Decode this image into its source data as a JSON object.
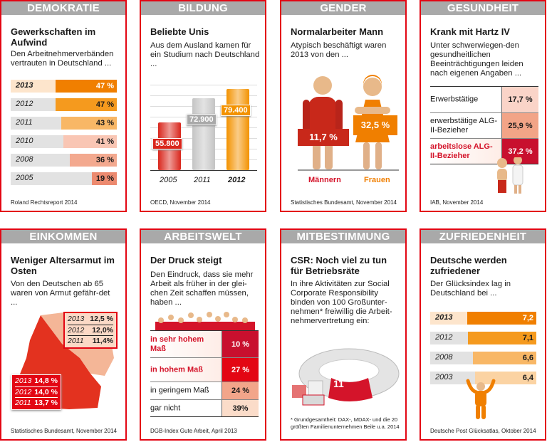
{
  "panels": {
    "demokratie": {
      "header": "DEMOKRATIE",
      "title": "Gewerkschaften im Aufwind",
      "subtitle": "Den Arbeitnehmerverbänden vertrauten in Deutschland ...",
      "source": "Roland Rechtsreport 2014"
    },
    "bildung": {
      "header": "BILDUNG",
      "title": "Beliebte Unis",
      "subtitle": "Aus dem Ausland kamen für ein Studium nach Deutschland ...",
      "source": "OECD, November 2014"
    },
    "gender": {
      "header": "GENDER",
      "title": "Normalarbeiter Mann",
      "subtitle": "Atypisch beschäftigt waren 2013 von den ...",
      "source": "Statistisches Bundesamt, November 2014"
    },
    "gesundheit": {
      "header": "GESUNDHEIT",
      "title": "Krank mit Hartz IV",
      "subtitle": "Unter schwerwiegen-den gesundheitlichen Beeinträchtigungen leiden nach eigenen Angaben ...",
      "source": "IAB, November 2014"
    },
    "einkommen": {
      "header": "EINKOMMEN",
      "title": "Weniger Altersarmut im Osten",
      "subtitle": "Von den Deutschen ab 65 waren von Armut gefähr-det ...",
      "source": "Statistisches Bundesamt, November 2014"
    },
    "arbeitswelt": {
      "header": "ARBEITSWELT",
      "title": "Der Druck steigt",
      "subtitle": "Den Eindruck, dass sie mehr Arbeit als früher in der glei-chen Zeit schaffen müssen, haben ...",
      "source": "DGB-Index Gute Arbeit, April 2013"
    },
    "mitbestimmung": {
      "header": "MITBESTIMMUNG",
      "title": "CSR: Noch viel zu tun für Betriebsräte",
      "subtitle": "In ihre Aktivitäten zur Social Corporate Responsibility binden von 100 Großunter-nehmen* freiwillig die Arbeit-nehmervertretung ein:",
      "value": "11",
      "footnote": "* Grundgesamtheit: DAX-, MDAX- und die 20 größten Familienunternehmen Beile u.a. 2014"
    },
    "zufriedenheit": {
      "header": "ZUFRIEDENHEIT",
      "title": "Deutsche werden zufriedener",
      "subtitle": "Der Glücksindex lag in Deutschland bei ...",
      "source": "Deutsche Post Glücksatlas, Oktober 2014"
    }
  },
  "chart_data": [
    {
      "id": "demokratie",
      "type": "bar",
      "orientation": "horizontal",
      "categories": [
        "2013",
        "2012",
        "2011",
        "2010",
        "2008",
        "2005"
      ],
      "values": [
        47,
        47,
        43,
        41,
        36,
        19
      ],
      "labels": [
        "47 %",
        "47 %",
        "43 %",
        "41 %",
        "36 %",
        "19 %"
      ],
      "colors": [
        "#f07f00",
        "#f59a1e",
        "#f8b766",
        "#f9c6b4",
        "#f3a98f",
        "#ec8a6f"
      ],
      "ylim": [
        0,
        82
      ]
    },
    {
      "id": "bildung",
      "type": "bar",
      "categories": [
        "2005",
        "2011",
        "2012"
      ],
      "values": [
        55800,
        72900,
        79400
      ],
      "labels": [
        "55.800",
        "72.900",
        "79.400"
      ],
      "colors": [
        "#d9261c",
        "#c4c4c4",
        "#f39200"
      ],
      "ylim": [
        23000,
        85000
      ]
    },
    {
      "id": "gender",
      "type": "bar",
      "categories": [
        "Männern",
        "Frauen"
      ],
      "values": [
        11.7,
        32.5
      ],
      "labels": [
        "11,7 %",
        "32,5 %"
      ],
      "colors": [
        "#d42a1a",
        "#f07f00"
      ]
    },
    {
      "id": "gesundheit",
      "type": "table",
      "rows": [
        {
          "label": "Erwerbstätige",
          "value": "17,7 %",
          "color": "#fad4c8",
          "highlight": false
        },
        {
          "label": "erwerbstätige ALG-II-Bezieher",
          "value": "25,9 %",
          "color": "#f2a487",
          "highlight": false
        },
        {
          "label": "arbeitslose ALG-II-Bezieher",
          "value": "37,2 %",
          "color": "#c8102e",
          "highlight": true
        }
      ]
    },
    {
      "id": "einkommen",
      "type": "table",
      "series": [
        {
          "name": "Ost",
          "rows": [
            {
              "year": "2013",
              "value": "12,5 %"
            },
            {
              "year": "2012",
              "value": "12,0%"
            },
            {
              "year": "2011",
              "value": "11,4%"
            }
          ]
        },
        {
          "name": "West",
          "rows": [
            {
              "year": "2013",
              "value": "14,8 %"
            },
            {
              "year": "2012",
              "value": "14,0 %"
            },
            {
              "year": "2011",
              "value": "13,7 %"
            }
          ]
        }
      ]
    },
    {
      "id": "arbeitswelt",
      "type": "table",
      "rows": [
        {
          "label": "in sehr hohem Maß",
          "value": "10 %",
          "color": "#c8102e",
          "highlight": true
        },
        {
          "label": "in hohem Maß",
          "value": "27 %",
          "color": "#e30613",
          "highlight": true
        },
        {
          "label": "in geringem Maß",
          "value": "24 %",
          "color": "#f2a58a",
          "highlight": false
        },
        {
          "label": "gar nicht",
          "value": "39%",
          "color": "#fbdcc9",
          "highlight": false
        }
      ]
    },
    {
      "id": "zufriedenheit",
      "type": "bar",
      "orientation": "horizontal",
      "categories": [
        "2013",
        "2012",
        "2008",
        "2003"
      ],
      "values": [
        7.2,
        7.1,
        6.6,
        6.4
      ],
      "labels": [
        "7,2",
        "7,1",
        "6,6",
        "6,4"
      ],
      "colors": [
        "#f07f00",
        "#f59a1e",
        "#f8b766",
        "#fbd3a3"
      ],
      "ylim": [
        0,
        11
      ]
    }
  ]
}
